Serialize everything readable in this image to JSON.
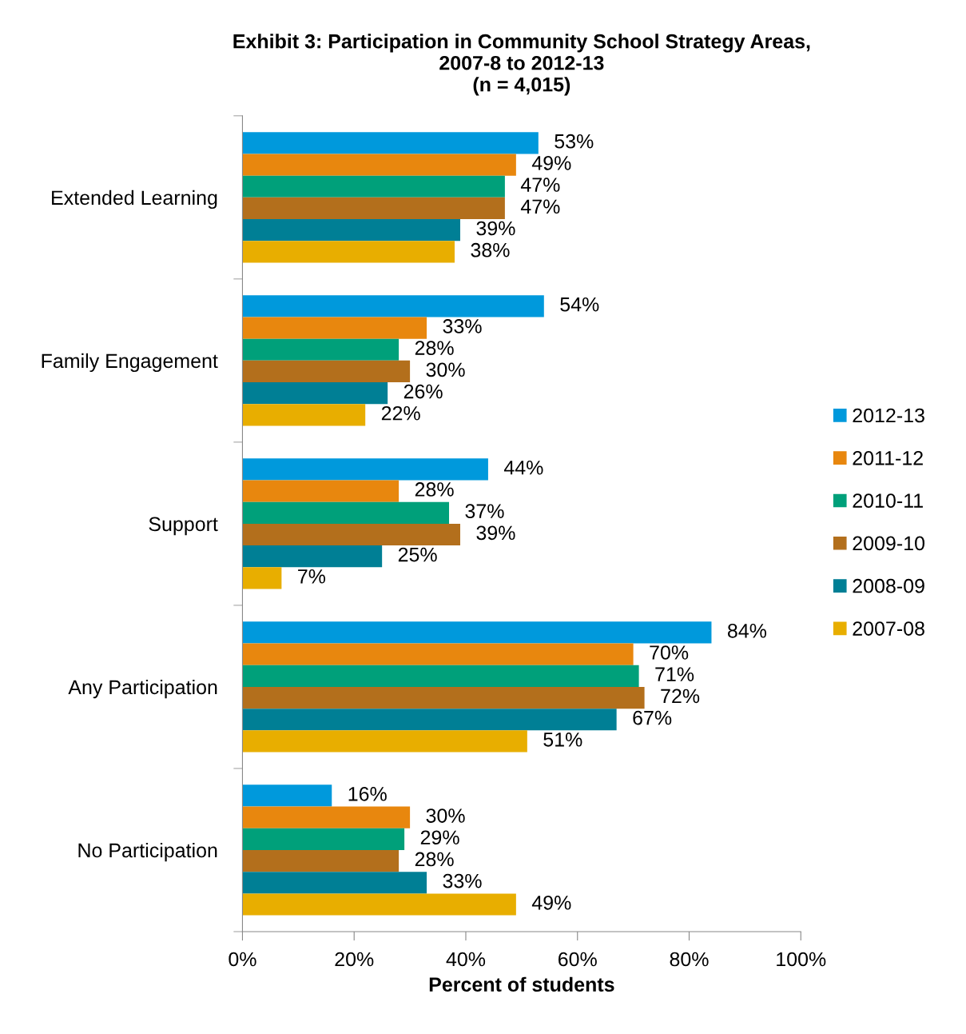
{
  "chart_data": {
    "type": "bar",
    "orientation": "horizontal",
    "title": "Exhibit 3: Participation in Community School Strategy Areas,\n2007-8 to 2012-13\n(n = 4,015)",
    "xlabel": "Percent of students",
    "categories": [
      "Extended Learning",
      "Family Engagement",
      "Support",
      "Any Participation",
      "No Participation"
    ],
    "series": [
      {
        "name": "2012-13",
        "color": "#0099dc",
        "values": [
          53,
          54,
          44,
          84,
          16
        ],
        "value_labels": [
          "53%",
          "54%",
          "44%",
          "84%",
          "16%"
        ]
      },
      {
        "name": "2011-12",
        "color": "#e8870e",
        "values": [
          49,
          33,
          28,
          70,
          30
        ],
        "value_labels": [
          "49%",
          "33%",
          "28%",
          "70%",
          "30%"
        ]
      },
      {
        "name": "2010-11",
        "color": "#00a07a",
        "values": [
          47,
          28,
          37,
          71,
          29
        ],
        "value_labels": [
          "47%",
          "28%",
          "37%",
          "71%",
          "29%"
        ]
      },
      {
        "name": "2009-10",
        "color": "#b36f1c",
        "values": [
          47,
          30,
          39,
          72,
          28
        ],
        "value_labels": [
          "47%",
          "30%",
          "39%",
          "72%",
          "28%"
        ]
      },
      {
        "name": "2008-09",
        "color": "#007f95",
        "values": [
          39,
          26,
          25,
          67,
          33
        ],
        "value_labels": [
          "39%",
          "26%",
          "25%",
          "67%",
          "33%"
        ]
      },
      {
        "name": "2007-08",
        "color": "#e8ae00",
        "values": [
          38,
          22,
          7,
          51,
          49
        ],
        "value_labels": [
          "38%",
          "22%",
          "7%",
          "51%",
          "49%"
        ]
      }
    ],
    "xlim": [
      0,
      100
    ],
    "xticks": [
      {
        "value": 0,
        "label": "0%"
      },
      {
        "value": 20,
        "label": "20%"
      },
      {
        "value": 40,
        "label": "40%"
      },
      {
        "value": 60,
        "label": "60%"
      },
      {
        "value": 80,
        "label": "80%"
      },
      {
        "value": 100,
        "label": "100%"
      }
    ],
    "grid": false,
    "legend": "right"
  }
}
